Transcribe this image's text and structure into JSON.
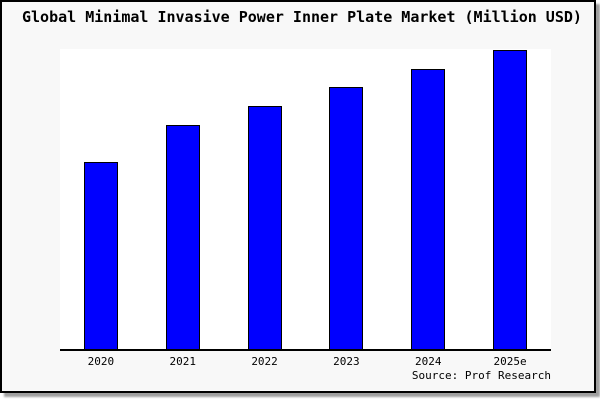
{
  "chart": {
    "title": "Global Minimal Invasive Power Inner Plate Market (Million USD)",
    "source_credit": "Source: Prof Research"
  },
  "chart_data": {
    "type": "bar",
    "title": "Global Minimal Invasive Power Inner Plate Market (Million USD)",
    "categories": [
      "2020",
      "2021",
      "2022",
      "2023",
      "2024",
      "2025e"
    ],
    "values": [
      62.5,
      75.0,
      81.3,
      87.7,
      93.8,
      100.0
    ],
    "values_note": "no y-axis ticks or labels shown in chart; values are relative bar heights normalized to 2025e = 100",
    "xlabel": "",
    "ylabel": "",
    "ylim": [
      0,
      100
    ],
    "grid": false,
    "legend": false,
    "y_axis_visible": false,
    "x_axis_line": true,
    "source": "Source: Prof Research",
    "colors": {
      "bar_fill": "#0000ff",
      "bar_edge": "#000000",
      "axis": "#000000",
      "frame_background": "#f8f8f8",
      "plot_background": "#ffffff",
      "frame_border": "#000000",
      "shadow": "#9e9e9e",
      "text": "#000000"
    }
  }
}
